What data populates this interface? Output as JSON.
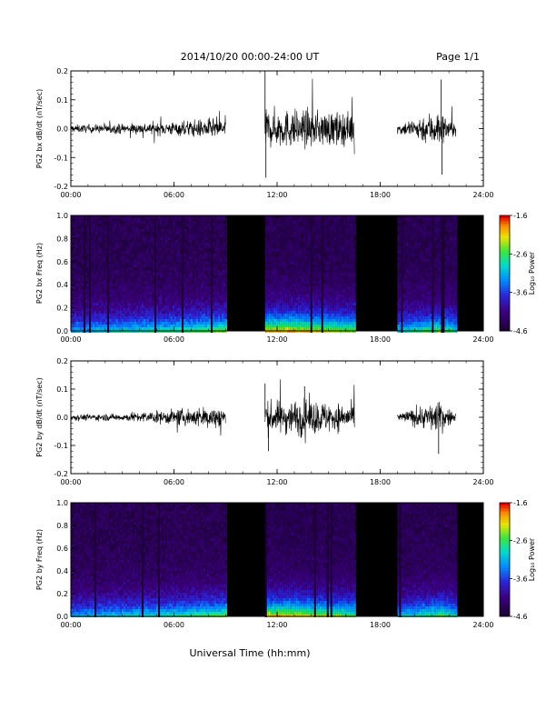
{
  "header": {
    "date_range": "2014/10/20  00:00-24:00 UT",
    "page": "Page 1/1"
  },
  "footer": {
    "xlabel": "Universal Time (hh:mm)"
  },
  "chart_data": [
    {
      "type": "line",
      "ylabel": "PG2 bx dB/dt (nT/sec)",
      "xlim": [
        0,
        24
      ],
      "ylim": [
        -0.2,
        0.2
      ],
      "yticks": [
        "-0.2",
        "-0.1",
        "0.0",
        "0.1",
        "0.2"
      ],
      "xticks": [
        "00:00",
        "06:00",
        "12:00",
        "18:00",
        "24:00"
      ],
      "data_segments": [
        [
          0.0,
          9.0
        ],
        [
          11.3,
          16.5
        ],
        [
          19.0,
          22.4
        ]
      ],
      "amplitude_envelope": [
        {
          "t": 0.0,
          "a": 0.012
        },
        {
          "t": 3.0,
          "a": 0.016
        },
        {
          "t": 6.0,
          "a": 0.022
        },
        {
          "t": 8.9,
          "a": 0.035
        },
        {
          "t": 11.3,
          "a": 0.06
        },
        {
          "t": 13.5,
          "a": 0.06
        },
        {
          "t": 16.4,
          "a": 0.05
        },
        {
          "t": 19.0,
          "a": 0.015
        },
        {
          "t": 21.3,
          "a": 0.06
        },
        {
          "t": 22.4,
          "a": 0.02
        }
      ],
      "spikes": [
        {
          "t": 11.3,
          "v": 0.2
        },
        {
          "t": 11.35,
          "v": -0.17
        },
        {
          "t": 21.55,
          "v": 0.17
        },
        {
          "t": 21.6,
          "v": -0.16
        }
      ]
    },
    {
      "type": "heatmap",
      "ylabel": "PG2 bx Freq (Hz)",
      "xlim": [
        0,
        24
      ],
      "ylim": [
        0,
        1.0
      ],
      "yticks": [
        "0.0",
        "0.2",
        "0.4",
        "0.6",
        "0.8",
        "1.0"
      ],
      "xticks": [
        "00:00",
        "06:00",
        "12:00",
        "18:00",
        "24:00"
      ],
      "colorbar": {
        "label": "Log₁₀ Power",
        "ticks": [
          "-1.6",
          "-2.6",
          "-3.6",
          "-4.6"
        ],
        "range": [
          -4.6,
          -1.6
        ]
      },
      "data_segments": [
        [
          0.0,
          9.0
        ],
        [
          11.3,
          16.5
        ],
        [
          19.0,
          22.4
        ]
      ],
      "gap_color": "#000000"
    },
    {
      "type": "line",
      "ylabel": "PG2 by dB/dt (nT/sec)",
      "xlim": [
        0,
        24
      ],
      "ylim": [
        -0.2,
        0.2
      ],
      "yticks": [
        "-0.2",
        "-0.1",
        "0.0",
        "0.1",
        "0.2"
      ],
      "xticks": [
        "00:00",
        "06:00",
        "12:00",
        "18:00",
        "24:00"
      ],
      "data_segments": [
        [
          0.0,
          9.0
        ],
        [
          11.3,
          16.5
        ],
        [
          19.0,
          22.4
        ]
      ],
      "amplitude_envelope": [
        {
          "t": 0.0,
          "a": 0.01
        },
        {
          "t": 3.0,
          "a": 0.012
        },
        {
          "t": 6.0,
          "a": 0.025
        },
        {
          "t": 8.9,
          "a": 0.04
        },
        {
          "t": 11.3,
          "a": 0.05
        },
        {
          "t": 13.5,
          "a": 0.06
        },
        {
          "t": 16.4,
          "a": 0.04
        },
        {
          "t": 19.0,
          "a": 0.012
        },
        {
          "t": 21.3,
          "a": 0.05
        },
        {
          "t": 22.4,
          "a": 0.015
        }
      ],
      "spikes": [
        {
          "t": 11.3,
          "v": 0.12
        },
        {
          "t": 11.5,
          "v": -0.12
        },
        {
          "t": 13.6,
          "v": 0.11
        },
        {
          "t": 21.4,
          "v": -0.13
        }
      ]
    },
    {
      "type": "heatmap",
      "ylabel": "PG2 by Freq (Hz)",
      "xlim": [
        0,
        24
      ],
      "ylim": [
        0,
        1.0
      ],
      "yticks": [
        "0.0",
        "0.2",
        "0.4",
        "0.6",
        "0.8",
        "1.0"
      ],
      "xticks": [
        "00:00",
        "06:00",
        "12:00",
        "18:00",
        "24:00"
      ],
      "colorbar": {
        "label": "Log₁₀ Power",
        "ticks": [
          "-1.6",
          "-2.6",
          "-3.6",
          "-4.6"
        ],
        "range": [
          -4.6,
          -1.6
        ]
      },
      "data_segments": [
        [
          0.0,
          9.0
        ],
        [
          11.3,
          16.5
        ],
        [
          19.0,
          22.4
        ]
      ],
      "gap_color": "#000000"
    }
  ]
}
